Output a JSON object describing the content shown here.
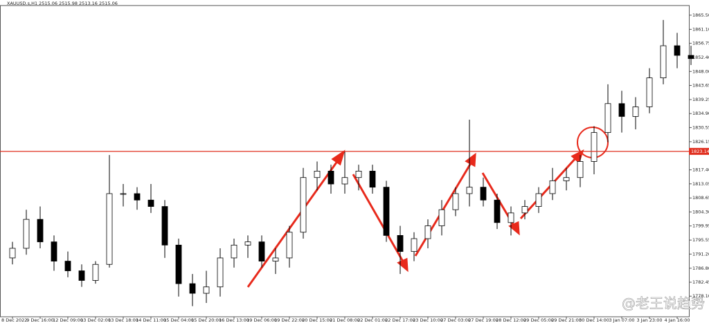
{
  "chart_data": {
    "type": "candlestick",
    "title": "XAUUSD.s,H1  2515.06 2515.98 2513.16 2515.06",
    "watermark": "@老王说趋势",
    "categories": [
      "8 Dec 2022",
      null,
      "9 Dec 16:00",
      null,
      "12 Dec 09:00",
      null,
      "13 Dec 02:00",
      null,
      "13 Dec 18:00",
      null,
      "14 Dec 11:00",
      null,
      "15 Dec 04:00",
      null,
      "15 Dec 20:00",
      null,
      "16 Dec 13:00",
      null,
      "19 Dec 06:00",
      null,
      "19 Dec 22:00",
      null,
      "20 Dec 15:00",
      null,
      "21 Dec 08:00",
      null,
      "22 Dec 01:00",
      null,
      "22 Dec 17:00",
      null,
      "23 Dec 10:00",
      null,
      "27 Dec 03:00",
      null,
      "27 Dec 19:00",
      null,
      "28 Dec 12:00",
      null,
      "29 Dec 05:00",
      null,
      "29 Dec 21:00",
      null,
      "30 Dec 14:00",
      null,
      "3 Jan 07:00",
      null,
      "3 Jan 23:00",
      null,
      "4 Jan 16:00",
      null
    ],
    "open": [
      1790,
      1793,
      1802,
      1795,
      1789,
      1786,
      1783,
      1788,
      1810,
      1810,
      1808,
      1806,
      1794,
      1782,
      1779,
      1781,
      1790,
      1794,
      1795,
      1789,
      1790,
      1798,
      1815,
      1817,
      1813,
      1815,
      1817,
      1812,
      1797,
      1792,
      1796,
      1800,
      1805,
      1810,
      1812,
      1808,
      1801,
      1804,
      1806,
      1810,
      1814,
      1815,
      1820,
      1829,
      1838,
      1834,
      1837,
      1846,
      1856,
      1853
    ],
    "high": [
      1795,
      1805,
      1806,
      1797,
      1792,
      1788,
      1789,
      1822,
      1813,
      1812,
      1813,
      1808,
      1796,
      1785,
      1786,
      1793,
      1796,
      1797,
      1797,
      1793,
      1800,
      1818,
      1820,
      1819,
      1823,
      1819,
      1819,
      1814,
      1800,
      1798,
      1802,
      1808,
      1812,
      1833,
      1815,
      1810,
      1806,
      1808,
      1812,
      1818,
      1818,
      1822,
      1831,
      1844,
      1842,
      1840,
      1849,
      1864,
      1860,
      1856
    ],
    "low": [
      1788,
      1791,
      1793,
      1786,
      1784,
      1781,
      1782,
      1787,
      1806,
      1805,
      1804,
      1790,
      1778,
      1775,
      1776,
      1778,
      1787,
      1790,
      1787,
      1785,
      1787,
      1796,
      1811,
      1810,
      1810,
      1811,
      1810,
      1795,
      1785,
      1789,
      1793,
      1797,
      1803,
      1806,
      1806,
      1799,
      1797,
      1802,
      1804,
      1808,
      1811,
      1812,
      1816,
      1826,
      1829,
      1830,
      1835,
      1844,
      1849,
      1850
    ],
    "close": [
      1793,
      1802,
      1795,
      1789,
      1786,
      1783,
      1788,
      1810,
      1810,
      1808,
      1806,
      1794,
      1782,
      1779,
      1781,
      1790,
      1794,
      1795,
      1789,
      1790,
      1798,
      1815,
      1817,
      1813,
      1815,
      1817,
      1812,
      1797,
      1792,
      1796,
      1800,
      1805,
      1810,
      1812,
      1808,
      1801,
      1804,
      1806,
      1810,
      1814,
      1815,
      1820,
      1829,
      1838,
      1834,
      1837,
      1846,
      1856,
      1853,
      1852
    ],
    "level": {
      "value": 1823.14,
      "label": "1823.14",
      "color": "#e03020"
    },
    "ylim": [
      1771.7,
      1868.5
    ],
    "yticks": [
      {
        "value": 1865.5,
        "label": "1865.50"
      },
      {
        "value": 1861.1,
        "label": "1861.10"
      },
      1856.75,
      {
        "value": 1852.4,
        "label": "1852.40"
      },
      {
        "value": 1848,
        "label": "1848.00"
      },
      1843.65,
      1839.25,
      {
        "value": 1834.9,
        "label": "1834.90"
      },
      1830.55,
      1826.15,
      {
        "value": 1817.4,
        "label": "1817.40"
      },
      1813.05,
      1808.65,
      {
        "value": 1804.3,
        "label": "1804.30"
      },
      {
        "value": 1799.95,
        "label": "1799.95"
      },
      1795.55,
      {
        "value": 1791.2,
        "label": "1791.20"
      },
      {
        "value": 1786.8,
        "label": "1786.80"
      },
      1782.45,
      {
        "value": 1778.1,
        "label": "1778.10"
      }
    ],
    "grid": false
  }
}
